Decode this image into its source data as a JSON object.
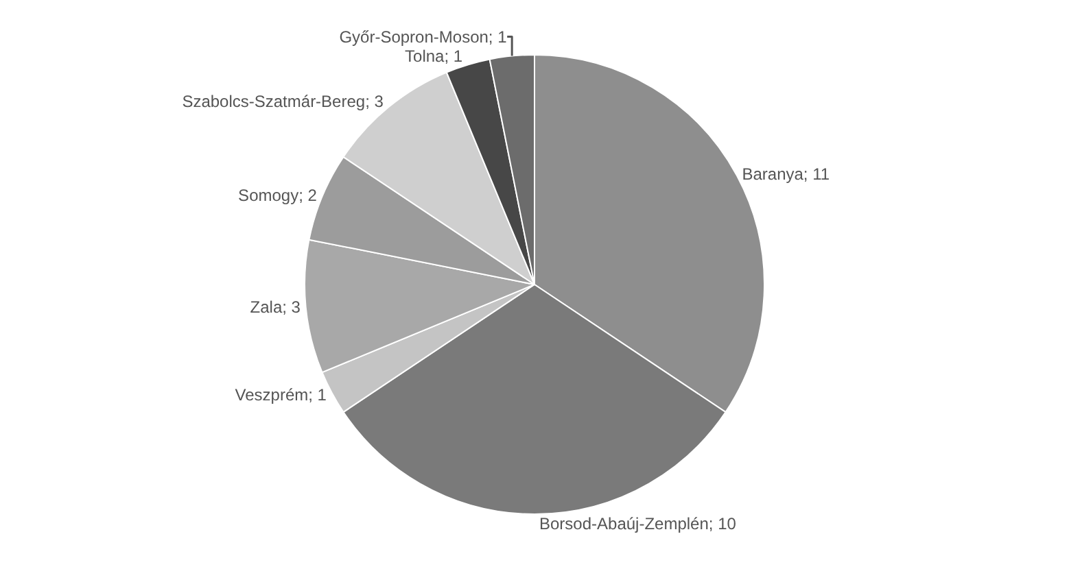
{
  "chart_data": {
    "type": "pie",
    "categories": [
      "Baranya; 11",
      "Borsod-Abaúj-Zemplén; 10",
      "Veszprém; 1",
      "Zala; 3",
      "Somogy; 2",
      "Szabolcs-Szatmár-Bereg; 3",
      "Tolna; 1",
      "Győr-Sopron-Moson; 1"
    ],
    "values": [
      11,
      10,
      1,
      3,
      2,
      3,
      1,
      1
    ],
    "colors": [
      "#8e8e8e",
      "#7a7a7a",
      "#c4c4c4",
      "#a8a8a8",
      "#9c9c9c",
      "#cfcfcf",
      "#474747",
      "#6c6c6c"
    ]
  }
}
